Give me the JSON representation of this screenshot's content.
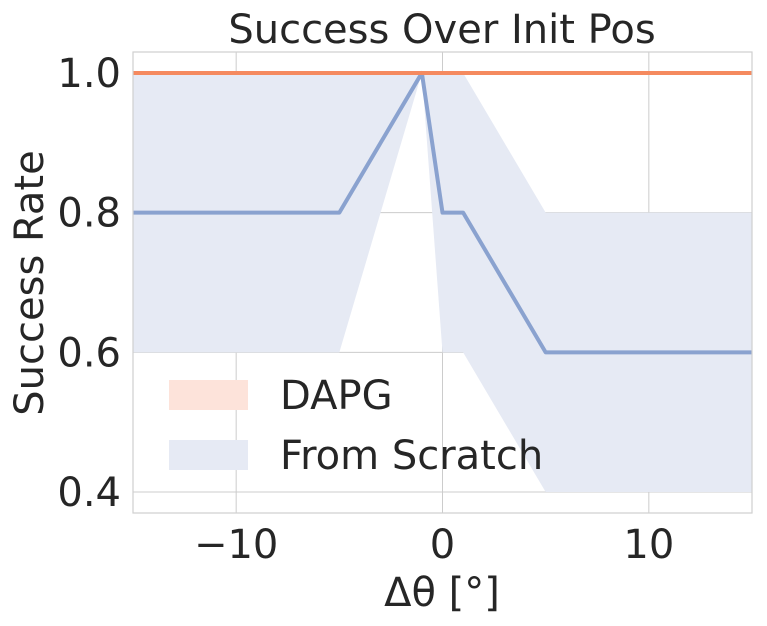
{
  "chart_data": {
    "type": "line",
    "title": "Success Over Init Pos",
    "xlabel": "Δθ [°]",
    "ylabel": "Success Rate",
    "xlim": [
      -15,
      15
    ],
    "ylim": [
      0.37,
      1.03
    ],
    "x_ticks": [
      -10,
      0,
      10
    ],
    "x_tick_labels": [
      "−10",
      "0",
      "10"
    ],
    "y_ticks": [
      0.4,
      0.6,
      0.8,
      1.0
    ],
    "y_tick_labels": [
      "0.4",
      "0.6",
      "0.8",
      "1.0"
    ],
    "grid": true,
    "legend_position": "lower-left",
    "series": [
      {
        "name": "DAPG",
        "color": "#f58a5f",
        "band_color": "#fde3da",
        "x": [
          -15,
          15
        ],
        "mean": [
          1.0,
          1.0
        ],
        "lower": [
          1.0,
          1.0
        ],
        "upper": [
          1.0,
          1.0
        ]
      },
      {
        "name": "From Scratch",
        "color": "#8aa2cf",
        "band_color": "#e6eaf4",
        "x": [
          -15,
          -5,
          -1,
          0,
          1,
          5,
          15
        ],
        "mean": [
          0.8,
          0.8,
          1.0,
          0.8,
          0.8,
          0.6,
          0.6
        ],
        "lower": [
          0.6,
          0.6,
          1.0,
          0.6,
          0.6,
          0.4,
          0.4
        ],
        "upper": [
          1.0,
          1.0,
          1.0,
          1.0,
          1.0,
          0.8,
          0.8
        ]
      }
    ]
  }
}
